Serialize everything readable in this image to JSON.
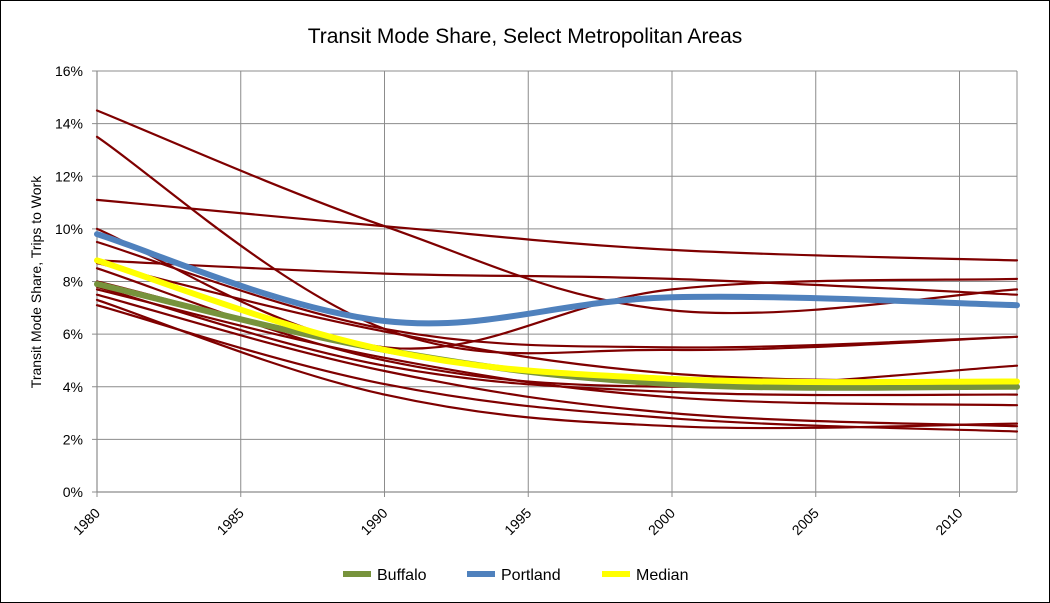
{
  "chart_data": {
    "type": "line",
    "title": "Transit Mode Share, Select Metropolitan Areas",
    "xlabel": "",
    "ylabel": "Transit Mode Share, Trips to Work",
    "xlim": [
      1980,
      2012
    ],
    "ylim": [
      0,
      16
    ],
    "x_ticks": [
      1980,
      1985,
      1990,
      1995,
      2000,
      2005,
      2010
    ],
    "x_tick_labels": [
      "1980",
      "1985",
      "1990",
      "1995",
      "2000",
      "2005",
      "2010"
    ],
    "y_ticks": [
      0,
      2,
      4,
      6,
      8,
      10,
      12,
      14,
      16
    ],
    "y_tick_labels": [
      "0%",
      "2%",
      "4%",
      "6%",
      "8%",
      "10%",
      "12%",
      "14%",
      "16%"
    ],
    "grid": true,
    "legend_position": "bottom",
    "legend": [
      {
        "name": "Buffalo",
        "color": "#77933C"
      },
      {
        "name": "Portland",
        "color": "#4F81BD"
      },
      {
        "name": "Median",
        "color": "#FFFF00"
      }
    ],
    "x": [
      1980,
      1990,
      2000,
      2012
    ],
    "background_series_color": "#7F0000",
    "background_series": [
      {
        "values": [
          14.5,
          10.1,
          6.9,
          7.7
        ]
      },
      {
        "values": [
          13.5,
          6.2,
          5.4,
          5.9
        ]
      },
      {
        "values": [
          11.1,
          10.1,
          9.2,
          8.8
        ]
      },
      {
        "values": [
          8.8,
          8.3,
          8.1,
          7.5
        ]
      },
      {
        "values": [
          10.0,
          5.5,
          7.7,
          8.1
        ]
      },
      {
        "values": [
          9.5,
          6.2,
          5.5,
          5.9
        ]
      },
      {
        "values": [
          8.7,
          6.1,
          4.5,
          4.2
        ]
      },
      {
        "values": [
          8.5,
          5.0,
          4.0,
          4.8
        ]
      },
      {
        "values": [
          8.0,
          5.4,
          4.1,
          4.0
        ]
      },
      {
        "values": [
          7.8,
          4.8,
          3.8,
          3.7
        ]
      },
      {
        "values": [
          7.7,
          5.1,
          3.6,
          3.3
        ]
      },
      {
        "values": [
          7.5,
          4.6,
          3.0,
          2.5
        ]
      },
      {
        "values": [
          7.3,
          3.7,
          2.5,
          2.6
        ]
      },
      {
        "values": [
          7.1,
          4.1,
          2.8,
          2.3
        ]
      }
    ],
    "series": [
      {
        "name": "Buffalo",
        "color": "#77933C",
        "values": [
          7.9,
          5.4,
          4.1,
          4.0
        ]
      },
      {
        "name": "Portland",
        "color": "#4F81BD",
        "values": [
          9.8,
          6.5,
          7.4,
          7.1
        ]
      },
      {
        "name": "Median",
        "color": "#FFFF00",
        "values": [
          8.8,
          5.4,
          4.3,
          4.2
        ]
      }
    ]
  }
}
